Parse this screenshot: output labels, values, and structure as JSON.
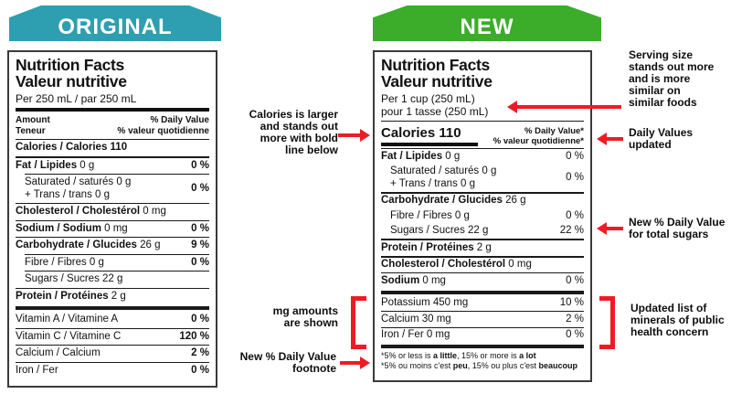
{
  "colors": {
    "original_banner": "#2E9FB0",
    "new_banner": "#3BAD2B",
    "annotation_red": "#ED1C24"
  },
  "original_label": {
    "banner": "ORIGINAL",
    "title_en": "Nutrition Facts",
    "title_fr": "Valeur nutritive",
    "serving": "Per 250 mL / par 250 mL",
    "amount_en": "Amount",
    "amount_fr": "Teneur",
    "dv_en": "% Daily Value",
    "dv_fr": "% valeur quotidienne",
    "rows": [
      {
        "bold": "Calories / Calories 110",
        "reg": "",
        "pct": "",
        "rule": "medium"
      },
      {
        "bold": "Fat / Lipides",
        "reg": " 0 g",
        "pct": "0 %",
        "rule": "thin",
        "rule_indent": true
      },
      {
        "reg": "Saturated / saturés 0 g",
        "reg2": "+ Trans / trans 0 g",
        "pct": "0 %",
        "indent": true,
        "rule": "thin"
      },
      {
        "bold": "Cholesterol / Cholestérol",
        "reg": " 0 mg",
        "pct": "",
        "rule": "thin"
      },
      {
        "bold": "Sodium / Sodium",
        "reg": " 0 mg",
        "pct": "0 %",
        "rule": "thin"
      },
      {
        "bold": "Carbohydrate / Glucides",
        "reg": " 26 g",
        "pct": "9 %",
        "rule": "thin",
        "rule_indent": true
      },
      {
        "reg": "Fibre / Fibres 0 g",
        "pct": "0 %",
        "indent": true,
        "rule": "thin",
        "rule_indent": true
      },
      {
        "reg": "Sugars / Sucres 22 g",
        "pct": "",
        "indent": true,
        "rule": "thin"
      },
      {
        "bold": "Protein / Protéines",
        "reg": " 2 g",
        "pct": "",
        "rule": "thick"
      },
      {
        "reg": "Vitamin A / Vitamine A",
        "pct": "0 %",
        "rule": "thin"
      },
      {
        "reg": "Vitamin C / Vitamine C",
        "pct": "120 %",
        "rule": "thin"
      },
      {
        "reg": "Calcium / Calcium",
        "pct": "2 %",
        "rule": "thin"
      },
      {
        "reg": "Iron / Fer",
        "pct": "0 %",
        "rule": "none"
      }
    ]
  },
  "new_label": {
    "banner": "NEW",
    "title_en": "Nutrition Facts",
    "title_fr": "Valeur nutritive",
    "serving_en": "Per 1 cup (250 mL)",
    "serving_fr": "pour 1 tasse (250 mL)",
    "calories": "Calories 110",
    "dv_en": "% Daily Value*",
    "dv_fr": "% valeur quotidienne*",
    "rows": [
      {
        "bold": "Fat / Lipides",
        "reg": " 0 g",
        "pct": "0 %",
        "rule": "none"
      },
      {
        "reg": "Saturated / saturés 0 g",
        "reg2": "+ Trans / trans 0 g",
        "pct": "0 %",
        "indent": true,
        "rule": "medium"
      },
      {
        "bold": "Carbohydrate / Glucides",
        "reg": " 26 g",
        "pct": "",
        "rule": "none"
      },
      {
        "reg": "Fibre / Fibres 0 g",
        "pct": "0 %",
        "indent": true,
        "rule": "none"
      },
      {
        "reg": "Sugars / Sucres 22 g",
        "pct": "22 %",
        "indent": true,
        "rule": "medium"
      },
      {
        "bold": "Protein / Protéines",
        "reg": " 2 g",
        "pct": "",
        "rule": "medium"
      },
      {
        "bold": "Cholesterol / Cholestérol",
        "reg": " 0 mg",
        "pct": "",
        "rule": "thin"
      },
      {
        "bold": "Sodium",
        "reg": " 0 mg",
        "pct": "0 %",
        "rule": "thick"
      },
      {
        "reg": "Potassium 450 mg",
        "pct": "10 %",
        "rule": "thin"
      },
      {
        "reg": "Calcium 30 mg",
        "pct": "2 %",
        "rule": "thin"
      },
      {
        "reg": "Iron / Fer 0 mg",
        "pct": "0 %",
        "rule": "thick"
      }
    ],
    "footnote": [
      [
        {
          "t": "*5% or less is "
        },
        {
          "t": "a little",
          "b": true
        },
        {
          "t": ", 15% or more is "
        },
        {
          "t": "a lot",
          "b": true
        }
      ],
      [
        {
          "t": "*5% ou moins c'est "
        },
        {
          "t": "peu",
          "b": true
        },
        {
          "t": ", 15% ou plus c'est "
        },
        {
          "t": "beaucoup",
          "b": true
        }
      ]
    ]
  },
  "annotations": {
    "calories": "Calories is larger\nand stands out\nmore with bold\nline below",
    "mg": "mg amounts\nare shown",
    "footnote": "New % Daily Value\nfootnote",
    "serving": "Serving size\nstands out more\nand is more\nsimilar on\nsimilar foods",
    "daily_values": "Daily Values\nupdated",
    "sugars": "New % Daily Value\nfor total sugars",
    "minerals": "Updated list of\nminerals of public\nhealth concern"
  }
}
